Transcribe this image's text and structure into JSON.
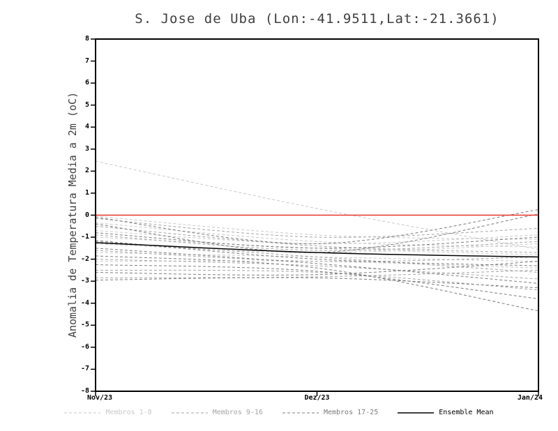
{
  "chart_data": {
    "type": "line",
    "title": "S. Jose de Uba (Lon:-41.9511,Lat:-21.3661)",
    "ylabel": "Anomalia de Temperatura Media a 2m (oC)",
    "ylim": [
      -8,
      8
    ],
    "yticks": [
      -8,
      -7,
      -6,
      -5,
      -4,
      -3,
      -2,
      -1,
      0,
      1,
      2,
      3,
      4,
      5,
      6,
      7,
      8
    ],
    "x_categories": [
      "Nov/23",
      "Dez/23",
      "Jan/24"
    ],
    "x_positions": [
      0,
      0.5,
      1
    ],
    "grid": false,
    "legend_position": "bottom",
    "zero_line": {
      "y": 0,
      "color": "#e8352a"
    },
    "groups": [
      {
        "name": "Membros 1-8",
        "color": "#c9c9c9",
        "style": "dashed"
      },
      {
        "name": "Membros 9-16",
        "color": "#a4a4a4",
        "style": "dashed"
      },
      {
        "name": "Membros 17-25",
        "color": "#7c7c7c",
        "style": "dashed"
      },
      {
        "name": "Ensemble Mean",
        "color": "#000000",
        "style": "solid"
      }
    ],
    "members": [
      {
        "group": 0,
        "values": [
          2.45,
          0.3,
          -1.55
        ]
      },
      {
        "group": 0,
        "values": [
          -0.05,
          -0.9,
          -1.1
        ]
      },
      {
        "group": 0,
        "values": [
          -0.35,
          -1.2,
          -1.45
        ]
      },
      {
        "group": 0,
        "values": [
          -0.7,
          -1.3,
          -0.9
        ]
      },
      {
        "group": 0,
        "values": [
          -1.0,
          -1.5,
          -1.8
        ]
      },
      {
        "group": 0,
        "values": [
          -1.3,
          -1.7,
          -1.3
        ]
      },
      {
        "group": 0,
        "values": [
          -1.7,
          -1.9,
          -2.1
        ]
      },
      {
        "group": 0,
        "values": [
          -2.1,
          -2.1,
          -2.4
        ]
      },
      {
        "group": 1,
        "values": [
          -0.15,
          -1.0,
          -0.6
        ]
      },
      {
        "group": 1,
        "values": [
          -0.5,
          -1.4,
          -1.7
        ]
      },
      {
        "group": 1,
        "values": [
          -0.9,
          -1.6,
          -1.2
        ]
      },
      {
        "group": 1,
        "values": [
          -1.2,
          -1.9,
          -2.6
        ]
      },
      {
        "group": 1,
        "values": [
          -1.6,
          -2.1,
          -1.9
        ]
      },
      {
        "group": 1,
        "values": [
          -2.0,
          -2.3,
          -2.9
        ]
      },
      {
        "group": 1,
        "values": [
          -2.5,
          -2.6,
          -3.4
        ]
      },
      {
        "group": 1,
        "values": [
          -2.85,
          -2.8,
          -2.5
        ]
      },
      {
        "group": 2,
        "values": [
          -0.1,
          -1.3,
          0.25
        ]
      },
      {
        "group": 2,
        "values": [
          -0.4,
          -1.7,
          0.05
        ]
      },
      {
        "group": 2,
        "values": [
          -0.8,
          -1.5,
          -1.0
        ]
      },
      {
        "group": 2,
        "values": [
          -1.15,
          -2.0,
          -2.3
        ]
      },
      {
        "group": 2,
        "values": [
          -1.5,
          -2.2,
          -3.1
        ]
      },
      {
        "group": 2,
        "values": [
          -1.85,
          -2.4,
          -4.35
        ]
      },
      {
        "group": 2,
        "values": [
          -2.25,
          -2.55,
          -3.8
        ]
      },
      {
        "group": 2,
        "values": [
          -2.6,
          -2.7,
          -2.1
        ]
      },
      {
        "group": 2,
        "values": [
          -2.95,
          -2.85,
          -3.3
        ]
      }
    ],
    "ensemble_mean": {
      "values": [
        -1.25,
        -1.7,
        -1.9
      ]
    }
  }
}
